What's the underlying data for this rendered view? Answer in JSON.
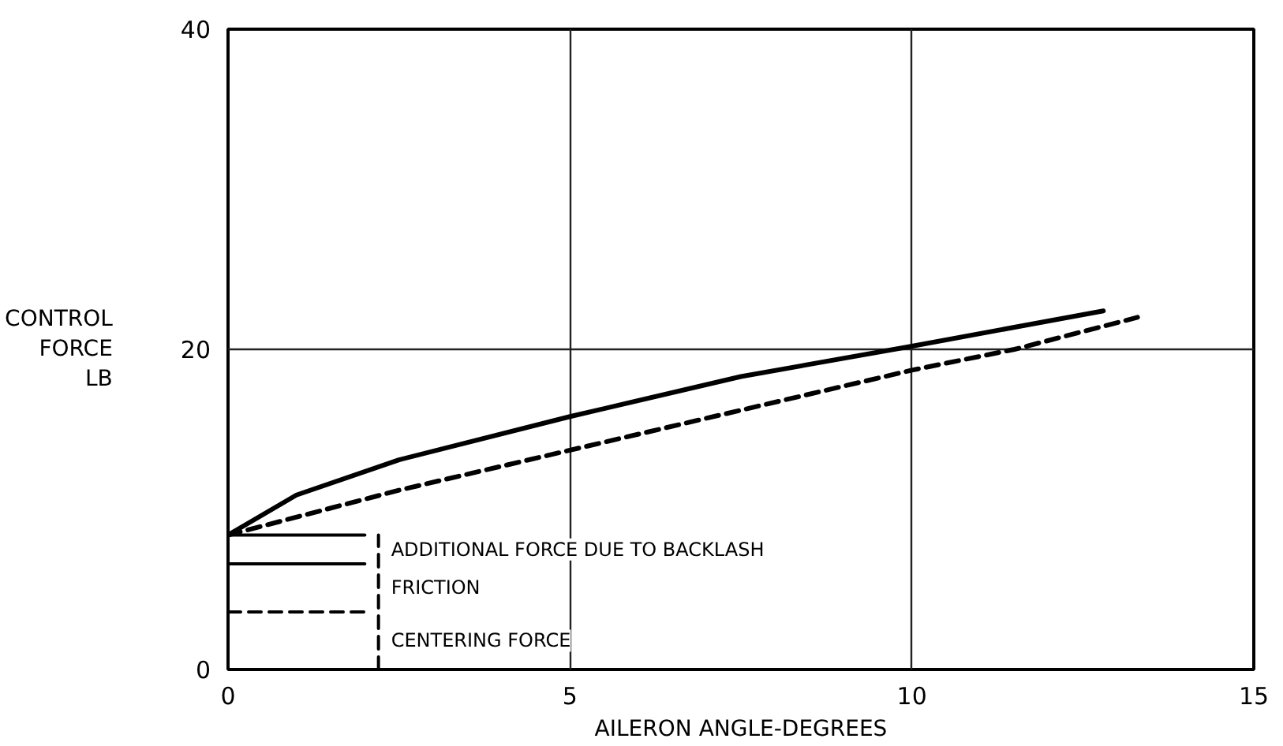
{
  "chart_data": {
    "type": "line",
    "xlabel": "AILERON ANGLE-DEGREES",
    "ylabel": "CONTROL\nFORCE\nLB",
    "series": [
      {
        "color": "#000000",
        "line_style": "solid",
        "x": [
          0,
          1,
          2.5,
          5,
          7.5,
          10,
          12.8
        ],
        "values": [
          8.4,
          10.9,
          13.1,
          15.8,
          18.3,
          20.2,
          22.4
        ]
      },
      {
        "color": "#000000",
        "line_style": "dashed",
        "x": [
          0,
          2.5,
          5,
          7.5,
          10,
          11.5,
          13.3
        ],
        "values": [
          8.4,
          11.2,
          13.7,
          16.2,
          18.7,
          20.0,
          22.0
        ]
      },
      {
        "color": "#000000",
        "line_style": "solid",
        "x": [
          0,
          2
        ],
        "values": [
          8.4,
          8.4
        ]
      },
      {
        "color": "#000000",
        "line_style": "solid",
        "x": [
          0,
          2
        ],
        "values": [
          6.6,
          6.6
        ]
      },
      {
        "color": "#000000",
        "line_style": "dashed",
        "x": [
          0,
          2
        ],
        "values": [
          3.6,
          3.6
        ]
      },
      {
        "color": "#000000",
        "line_style": "dashed",
        "x": [
          2.2,
          2.2
        ],
        "values": [
          0,
          8.4
        ]
      }
    ],
    "annotations": [
      "ADDITIONAL FORCE DUE TO BACKLASH",
      "FRICTION",
      "CENTERING FORCE"
    ],
    "xlim": [
      0,
      15
    ],
    "ylim": [
      0,
      40
    ],
    "xticks": [
      0,
      5,
      10,
      15
    ],
    "yticks": [
      0,
      20,
      40
    ],
    "grid": true
  }
}
